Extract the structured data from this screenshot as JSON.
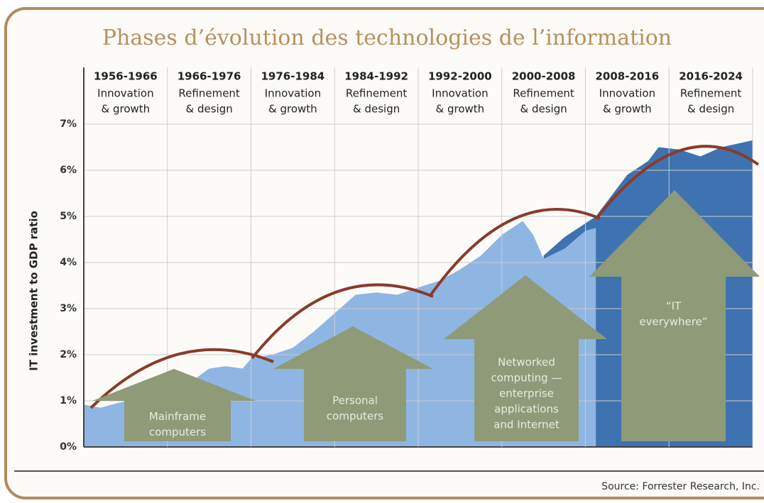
{
  "chart_data": {
    "type": "area",
    "title": "Phases d’évolution des technologies de l’information",
    "y_label": "IT investment to GDP ratio",
    "source": "Source: Forrester Research, Inc.",
    "periods": [
      {
        "years": "1956-1966",
        "phase": [
          "Innovation",
          "& growth"
        ]
      },
      {
        "years": "1966-1976",
        "phase": [
          "Refinement",
          "& design"
        ]
      },
      {
        "years": "1976-1984",
        "phase": [
          "Innovation",
          "& growth"
        ]
      },
      {
        "years": "1984-1992",
        "phase": [
          "Refinement",
          "& design"
        ]
      },
      {
        "years": "1992-2000",
        "phase": [
          "Innovation",
          "& growth"
        ]
      },
      {
        "years": "2000-2008",
        "phase": [
          "Refinement",
          "& design"
        ]
      },
      {
        "years": "2008-2016",
        "phase": [
          "Innovation",
          "& growth"
        ]
      },
      {
        "years": "2016-2024",
        "phase": [
          "Refinement",
          "& design"
        ]
      }
    ],
    "boundaries": [
      1956,
      1966,
      1976,
      1984,
      1992,
      2000,
      2008,
      2016,
      2024
    ],
    "x": [
      1956,
      1958,
      1960,
      1963,
      1966,
      1968,
      1971,
      1973,
      1975,
      1976,
      1978,
      1980,
      1982,
      1984,
      1986,
      1988,
      1990,
      1992,
      1994,
      1996,
      1998,
      2000,
      2002,
      2003,
      2004,
      2006,
      2008,
      2009,
      2010,
      2012,
      2014,
      2015,
      2017,
      2019,
      2021,
      2024
    ],
    "series": [
      {
        "color": "#3f72b0",
        "values": [
          null,
          null,
          null,
          null,
          null,
          null,
          null,
          null,
          null,
          null,
          null,
          null,
          null,
          null,
          null,
          null,
          null,
          null,
          null,
          null,
          null,
          null,
          null,
          null,
          4.15,
          4.55,
          4.85,
          5.0,
          5.3,
          5.9,
          6.2,
          6.5,
          6.45,
          6.3,
          6.5,
          6.65
        ]
      },
      {
        "color": "#8fb5e3",
        "values": [
          0.92,
          0.85,
          0.95,
          1.08,
          1.15,
          1.3,
          1.7,
          1.75,
          1.7,
          1.92,
          2.0,
          2.15,
          2.5,
          2.9,
          3.3,
          3.35,
          3.3,
          3.46,
          3.6,
          3.85,
          4.15,
          4.6,
          4.9,
          4.6,
          4.08,
          4.3,
          4.69,
          4.75,
          null,
          null,
          null,
          null,
          null,
          null,
          null,
          null
        ]
      }
    ],
    "ylim": [
      0,
      7
    ],
    "yticks": [
      {
        "value": 0,
        "label": "0%"
      },
      {
        "value": 1,
        "label": "1%"
      },
      {
        "value": 2,
        "label": "2%"
      },
      {
        "value": 3,
        "label": "3%"
      },
      {
        "value": 4,
        "label": "4%"
      },
      {
        "value": 5,
        "label": "5%"
      },
      {
        "value": 6,
        "label": "6%"
      },
      {
        "value": 7,
        "label": "7%"
      }
    ],
    "grid": true,
    "annotations": [
      {
        "lines": [
          "Mainframe",
          "computers"
        ]
      },
      {
        "lines": [
          "Personal",
          "computers"
        ]
      },
      {
        "lines": [
          "Networked",
          "computing —",
          "enterprise",
          "applications",
          "and Internet"
        ]
      },
      {
        "lines": [
          "“IT",
          "everywhere”"
        ]
      }
    ]
  }
}
